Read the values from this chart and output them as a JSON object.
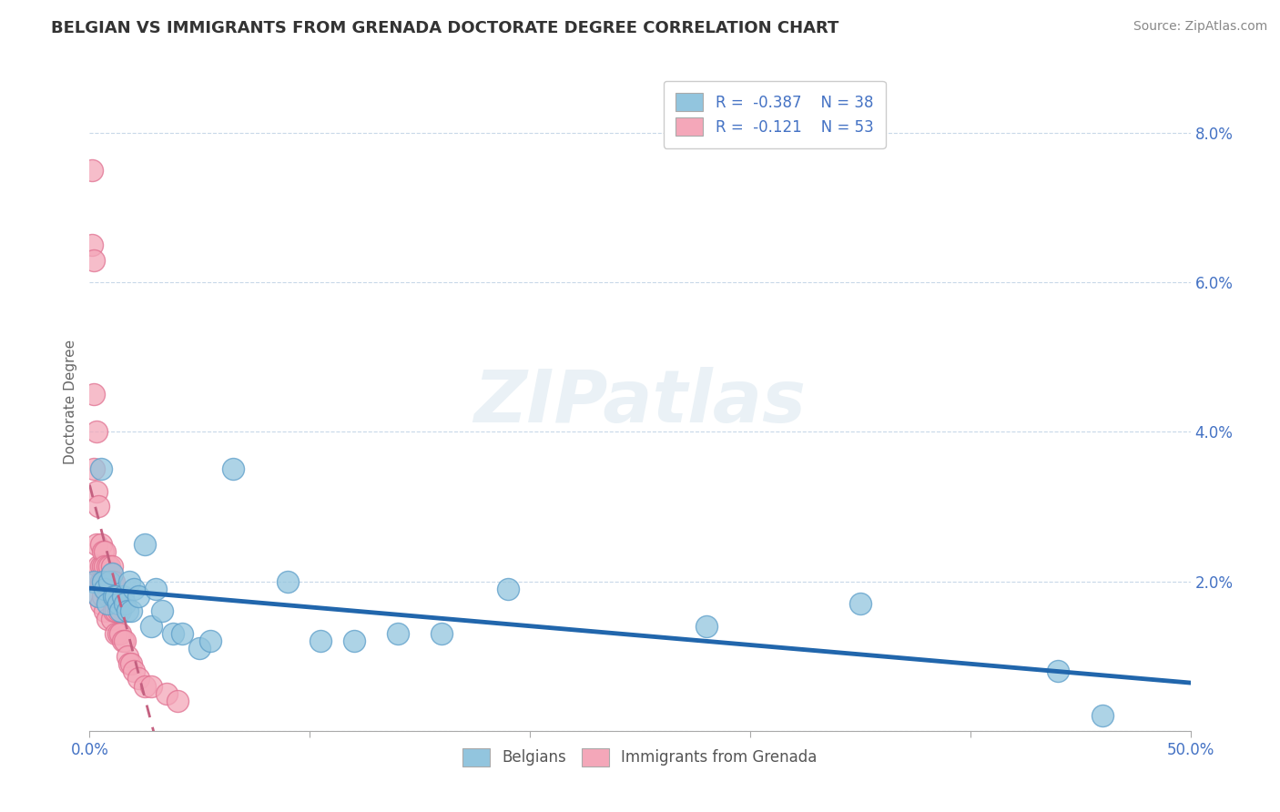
{
  "title": "BELGIAN VS IMMIGRANTS FROM GRENADA DOCTORATE DEGREE CORRELATION CHART",
  "source": "Source: ZipAtlas.com",
  "ylabel": "Doctorate Degree",
  "ytick_labels": [
    "",
    "2.0%",
    "4.0%",
    "6.0%",
    "8.0%"
  ],
  "ytick_values": [
    0.0,
    0.02,
    0.04,
    0.06,
    0.08
  ],
  "xlim": [
    0.0,
    0.5
  ],
  "ylim": [
    0.0,
    0.088
  ],
  "legend_entry1": "R =  -0.387    N = 38",
  "legend_entry2": "R =  -0.121    N = 53",
  "legend_label1": "Belgians",
  "legend_label2": "Immigrants from Grenada",
  "color_blue": "#92c5de",
  "color_pink": "#f4a7b9",
  "color_blue_edge": "#5b9dc9",
  "color_pink_edge": "#e07090",
  "color_blue_line": "#2166ac",
  "color_pink_line": "#c46080",
  "background": "#ffffff",
  "grid_color": "#c8d8e8",
  "belgians_x": [
    0.002,
    0.004,
    0.005,
    0.006,
    0.007,
    0.008,
    0.009,
    0.01,
    0.011,
    0.012,
    0.013,
    0.014,
    0.015,
    0.016,
    0.017,
    0.018,
    0.019,
    0.02,
    0.022,
    0.025,
    0.028,
    0.03,
    0.033,
    0.038,
    0.042,
    0.05,
    0.055,
    0.065,
    0.09,
    0.105,
    0.12,
    0.14,
    0.16,
    0.19,
    0.28,
    0.35,
    0.44,
    0.46
  ],
  "belgians_y": [
    0.02,
    0.018,
    0.035,
    0.02,
    0.019,
    0.017,
    0.02,
    0.021,
    0.018,
    0.018,
    0.017,
    0.016,
    0.018,
    0.017,
    0.016,
    0.02,
    0.016,
    0.019,
    0.018,
    0.025,
    0.014,
    0.019,
    0.016,
    0.013,
    0.013,
    0.011,
    0.012,
    0.035,
    0.02,
    0.012,
    0.012,
    0.013,
    0.013,
    0.019,
    0.014,
    0.017,
    0.008,
    0.002
  ],
  "grenada_x": [
    0.001,
    0.001,
    0.002,
    0.002,
    0.002,
    0.003,
    0.003,
    0.003,
    0.003,
    0.004,
    0.004,
    0.004,
    0.005,
    0.005,
    0.005,
    0.005,
    0.006,
    0.006,
    0.006,
    0.006,
    0.007,
    0.007,
    0.007,
    0.007,
    0.008,
    0.008,
    0.008,
    0.008,
    0.009,
    0.009,
    0.01,
    0.01,
    0.01,
    0.01,
    0.011,
    0.011,
    0.012,
    0.012,
    0.012,
    0.013,
    0.013,
    0.014,
    0.015,
    0.016,
    0.017,
    0.018,
    0.019,
    0.02,
    0.022,
    0.025,
    0.028,
    0.035,
    0.04
  ],
  "grenada_y": [
    0.075,
    0.065,
    0.063,
    0.045,
    0.035,
    0.04,
    0.032,
    0.025,
    0.02,
    0.03,
    0.022,
    0.018,
    0.025,
    0.022,
    0.02,
    0.017,
    0.024,
    0.022,
    0.02,
    0.018,
    0.024,
    0.022,
    0.02,
    0.016,
    0.022,
    0.02,
    0.018,
    0.015,
    0.022,
    0.018,
    0.022,
    0.02,
    0.018,
    0.015,
    0.02,
    0.016,
    0.018,
    0.016,
    0.013,
    0.016,
    0.013,
    0.013,
    0.012,
    0.012,
    0.01,
    0.009,
    0.009,
    0.008,
    0.007,
    0.006,
    0.006,
    0.005,
    0.004
  ]
}
